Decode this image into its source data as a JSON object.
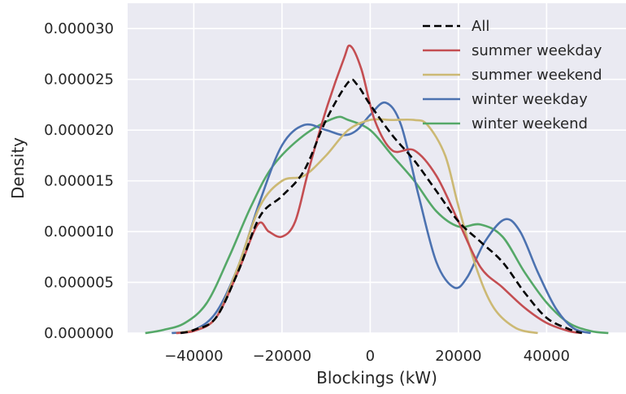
{
  "chart_data": {
    "type": "line",
    "title": "",
    "xlabel": "Blockings (kW)",
    "ylabel": "Density",
    "xlim": [
      -55000,
      58000
    ],
    "ylim": [
      0,
      3.25e-05
    ],
    "x_ticks": [
      -40000,
      -20000,
      0,
      20000,
      40000
    ],
    "x_tick_labels": [
      "−40000",
      "−20000",
      "0",
      "20000",
      "40000"
    ],
    "y_ticks": [
      0,
      5e-06,
      1e-05,
      1.5e-05,
      2e-05,
      2.5e-05,
      3e-05
    ],
    "y_tick_labels": [
      "0.000000",
      "0.000005",
      "0.000010",
      "0.000015",
      "0.000020",
      "0.000025",
      "0.000030"
    ],
    "grid": true,
    "background_color": "#eaeaf2",
    "legend_position": "top-right",
    "series": [
      {
        "name": "All",
        "color": "#000000",
        "dashed": true,
        "points": [
          [
            -43000,
            0
          ],
          [
            -40000,
            3e-07
          ],
          [
            -35000,
            1.5e-06
          ],
          [
            -30000,
            6e-06
          ],
          [
            -25000,
            1.15e-05
          ],
          [
            -20000,
            1.35e-05
          ],
          [
            -15000,
            1.6e-05
          ],
          [
            -10000,
            2.1e-05
          ],
          [
            -5000,
            2.47e-05
          ],
          [
            -3000,
            2.45e-05
          ],
          [
            0,
            2.25e-05
          ],
          [
            5000,
            1.95e-05
          ],
          [
            10000,
            1.7e-05
          ],
          [
            15000,
            1.4e-05
          ],
          [
            20000,
            1.1e-05
          ],
          [
            25000,
            9e-06
          ],
          [
            30000,
            7e-06
          ],
          [
            35000,
            4e-06
          ],
          [
            40000,
            1.5e-06
          ],
          [
            45000,
            4e-07
          ],
          [
            48000,
            0
          ]
        ]
      },
      {
        "name": "summer weekday",
        "color": "#c44e52",
        "dashed": false,
        "points": [
          [
            -44000,
            0
          ],
          [
            -40000,
            2e-07
          ],
          [
            -35000,
            1.5e-06
          ],
          [
            -30000,
            6e-06
          ],
          [
            -25500,
            1.07e-05
          ],
          [
            -23000,
            1e-05
          ],
          [
            -20000,
            9.5e-06
          ],
          [
            -17000,
            1.1e-05
          ],
          [
            -14000,
            1.6e-05
          ],
          [
            -10000,
            2.2e-05
          ],
          [
            -6000,
            2.7e-05
          ],
          [
            -4500,
            2.83e-05
          ],
          [
            -2000,
            2.6e-05
          ],
          [
            1000,
            2.1e-05
          ],
          [
            5000,
            1.8e-05
          ],
          [
            10000,
            1.8e-05
          ],
          [
            15000,
            1.55e-05
          ],
          [
            20000,
            1.1e-05
          ],
          [
            25000,
            6.5e-06
          ],
          [
            30000,
            4.5e-06
          ],
          [
            35000,
            2.5e-06
          ],
          [
            40000,
            1e-06
          ],
          [
            45000,
            2e-07
          ],
          [
            48000,
            0
          ]
        ]
      },
      {
        "name": "summer weekend",
        "color": "#ccb974",
        "dashed": false,
        "points": [
          [
            -44000,
            0
          ],
          [
            -40000,
            3e-07
          ],
          [
            -35000,
            1.5e-06
          ],
          [
            -30000,
            6.5e-06
          ],
          [
            -25000,
            1.25e-05
          ],
          [
            -20000,
            1.5e-05
          ],
          [
            -15000,
            1.55e-05
          ],
          [
            -10000,
            1.75e-05
          ],
          [
            -5000,
            2e-05
          ],
          [
            0,
            2.1e-05
          ],
          [
            5000,
            2.1e-05
          ],
          [
            10000,
            2.1e-05
          ],
          [
            13000,
            2.05e-05
          ],
          [
            17000,
            1.75e-05
          ],
          [
            20000,
            1.25e-05
          ],
          [
            24000,
            6.5e-06
          ],
          [
            28000,
            2.5e-06
          ],
          [
            33000,
            5e-07
          ],
          [
            38000,
            0
          ]
        ]
      },
      {
        "name": "winter weekday",
        "color": "#4c72b0",
        "dashed": false,
        "points": [
          [
            -45000,
            0
          ],
          [
            -40000,
            3e-07
          ],
          [
            -35000,
            2e-06
          ],
          [
            -30000,
            6.5e-06
          ],
          [
            -25000,
            1.3e-05
          ],
          [
            -20000,
            1.85e-05
          ],
          [
            -15000,
            2.05e-05
          ],
          [
            -10000,
            2e-05
          ],
          [
            -6000,
            1.95e-05
          ],
          [
            -3000,
            2e-05
          ],
          [
            0,
            2.15e-05
          ],
          [
            3500,
            2.27e-05
          ],
          [
            7000,
            2.05e-05
          ],
          [
            11000,
            1.35e-05
          ],
          [
            15000,
            7e-06
          ],
          [
            19000,
            4.5e-06
          ],
          [
            22000,
            5.5e-06
          ],
          [
            26000,
            9e-06
          ],
          [
            30500,
            1.12e-05
          ],
          [
            34000,
            1e-05
          ],
          [
            38000,
            6e-06
          ],
          [
            42000,
            2.5e-06
          ],
          [
            46000,
            5e-07
          ],
          [
            50000,
            0
          ]
        ]
      },
      {
        "name": "winter weekend",
        "color": "#55a868",
        "dashed": false,
        "points": [
          [
            -51000,
            0
          ],
          [
            -47000,
            3e-07
          ],
          [
            -42000,
            1e-06
          ],
          [
            -37000,
            3e-06
          ],
          [
            -32000,
            7.5e-06
          ],
          [
            -27000,
            1.25e-05
          ],
          [
            -22000,
            1.65e-05
          ],
          [
            -15000,
            1.95e-05
          ],
          [
            -8000,
            2.12e-05
          ],
          [
            -5000,
            2.1e-05
          ],
          [
            0,
            2e-05
          ],
          [
            5000,
            1.75e-05
          ],
          [
            10000,
            1.5e-05
          ],
          [
            15000,
            1.2e-05
          ],
          [
            20000,
            1.05e-05
          ],
          [
            25000,
            1.07e-05
          ],
          [
            30000,
            9.5e-06
          ],
          [
            35000,
            6e-06
          ],
          [
            40000,
            3e-06
          ],
          [
            45000,
            1e-06
          ],
          [
            50000,
            2e-07
          ],
          [
            54000,
            0
          ]
        ]
      }
    ]
  }
}
